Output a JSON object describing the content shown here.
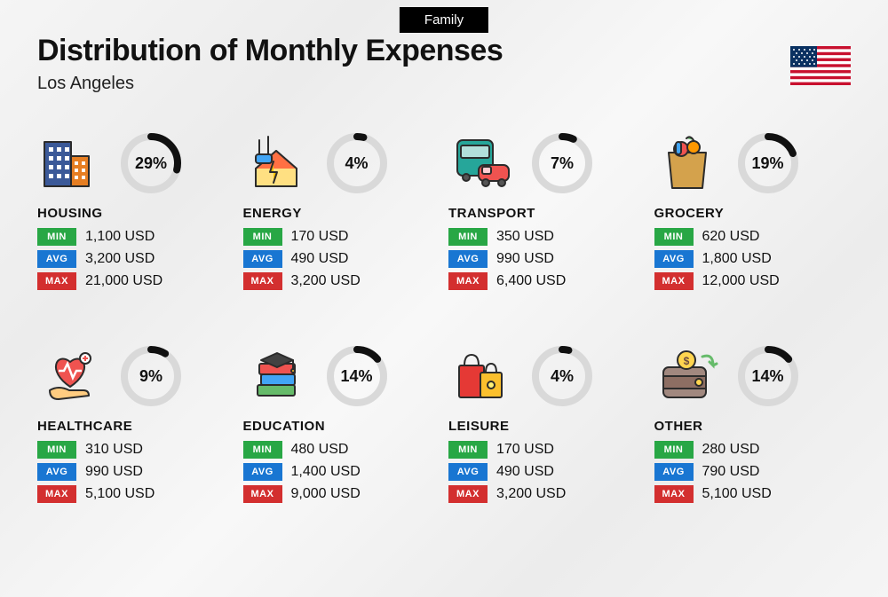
{
  "header": {
    "badge": "Family",
    "title": "Distribution of Monthly Expenses",
    "subtitle": "Los Angeles"
  },
  "flag": {
    "stripe_red": "#c8102e",
    "stripe_white": "#ffffff",
    "canton_blue": "#0a3161"
  },
  "ring_style": {
    "track_color": "#d9d9d9",
    "progress_color": "#111111",
    "stroke_width": 8,
    "radius": 30
  },
  "tag_colors": {
    "min": "#28a745",
    "avg": "#1976d2",
    "max": "#d32f2f"
  },
  "tag_labels": {
    "min": "MIN",
    "avg": "AVG",
    "max": "MAX"
  },
  "currency_suffix": "USD",
  "categories": [
    {
      "key": "housing",
      "name": "HOUSING",
      "percent": 29,
      "min": "1,100",
      "avg": "3,200",
      "max": "21,000",
      "icon": "buildings"
    },
    {
      "key": "energy",
      "name": "ENERGY",
      "percent": 4,
      "min": "170",
      "avg": "490",
      "max": "3,200",
      "icon": "energy-house"
    },
    {
      "key": "transport",
      "name": "TRANSPORT",
      "percent": 7,
      "min": "350",
      "avg": "990",
      "max": "6,400",
      "icon": "bus-car"
    },
    {
      "key": "grocery",
      "name": "GROCERY",
      "percent": 19,
      "min": "620",
      "avg": "1,800",
      "max": "12,000",
      "icon": "grocery-bag"
    },
    {
      "key": "healthcare",
      "name": "HEALTHCARE",
      "percent": 9,
      "min": "310",
      "avg": "990",
      "max": "5,100",
      "icon": "heart-hand"
    },
    {
      "key": "education",
      "name": "EDUCATION",
      "percent": 14,
      "min": "480",
      "avg": "1,400",
      "max": "9,000",
      "icon": "books-cap"
    },
    {
      "key": "leisure",
      "name": "LEISURE",
      "percent": 4,
      "min": "170",
      "avg": "490",
      "max": "3,200",
      "icon": "shopping-bags"
    },
    {
      "key": "other",
      "name": "OTHER",
      "percent": 14,
      "min": "280",
      "avg": "790",
      "max": "5,100",
      "icon": "wallet"
    }
  ]
}
